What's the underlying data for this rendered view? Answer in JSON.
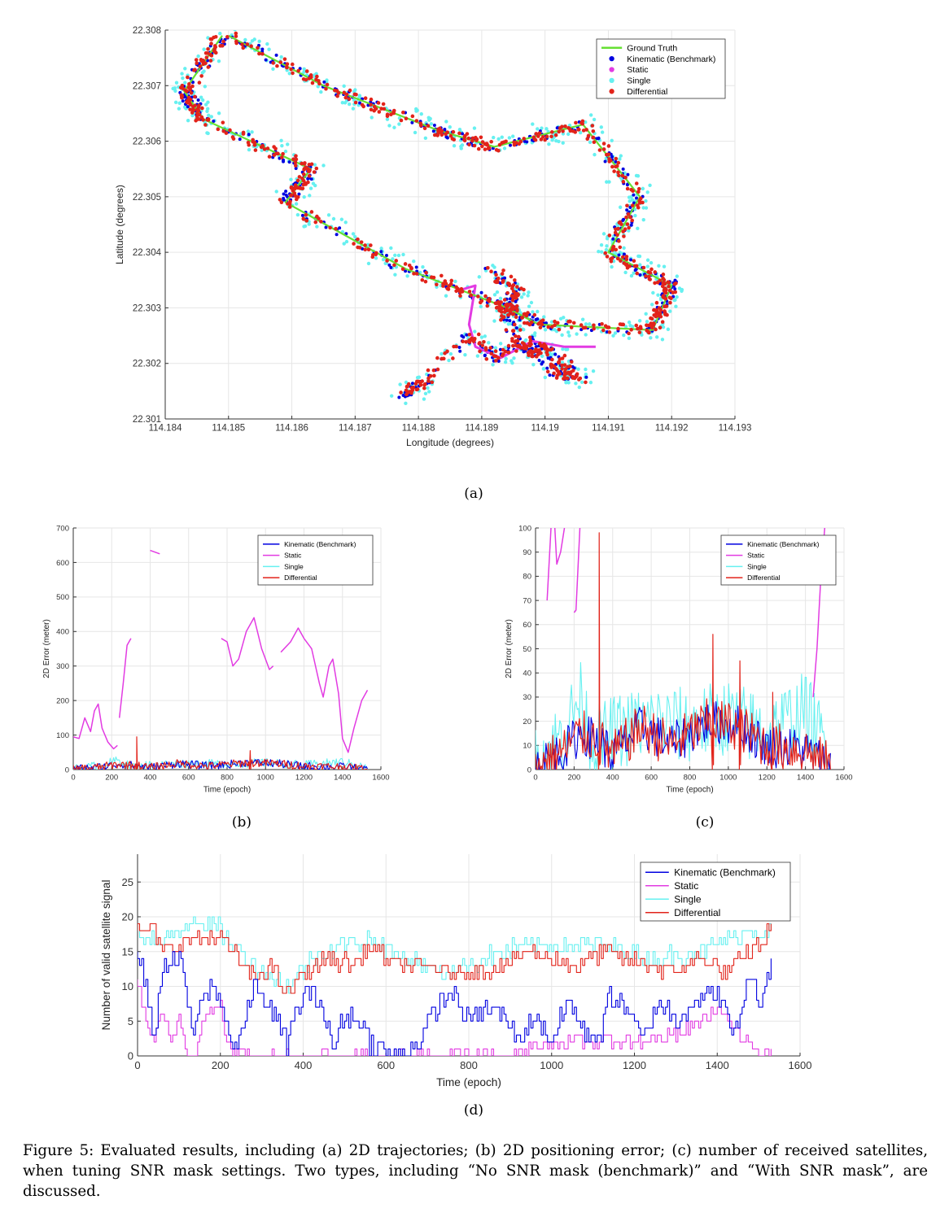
{
  "figure": {
    "caption": "Figure 5: Evaluated results, including (a) 2D trajectories; (b) 2D positioning error; (c) number of received satellites, when tuning SNR mask settings. Two types, including “No SNR mask (benchmark)” and “With SNR mask”, are discussed."
  },
  "colors": {
    "ground_truth": "#66e033",
    "kinematic": "#0000e0",
    "static": "#e23be2",
    "single": "#66f0f0",
    "differential": "#e2231a"
  },
  "chart_data": [
    {
      "id": "a",
      "label": "(a)",
      "type": "scatter",
      "xlabel": "Longitude (degrees)",
      "ylabel": "Latitude (degrees)",
      "xlim": [
        114.184,
        114.193
      ],
      "ylim": [
        22.301,
        22.308
      ],
      "xticks": [
        "114.184",
        "114.185",
        "114.186",
        "114.187",
        "114.188",
        "114.189",
        "114.19",
        "114.191",
        "114.192",
        "114.193"
      ],
      "yticks": [
        "22.301",
        "22.302",
        "22.303",
        "22.304",
        "22.305",
        "22.306",
        "22.307",
        "22.308"
      ],
      "grid": true,
      "legend_position": "top-right",
      "legend": [
        "Ground Truth",
        "Kinematic (Benchmark)",
        "Static",
        "Single",
        "Differential"
      ],
      "ground_truth": [
        [
          114.1849,
          22.3079
        ],
        [
          114.1843,
          22.3069
        ],
        [
          114.1846,
          22.3064
        ],
        [
          114.1863,
          22.3055
        ],
        [
          114.1859,
          22.3049
        ],
        [
          114.1878,
          22.3037
        ],
        [
          114.1894,
          22.303
        ],
        [
          114.1899,
          22.3027
        ],
        [
          114.1917,
          22.3026
        ],
        [
          114.192,
          22.3034
        ],
        [
          114.191,
          22.304
        ],
        [
          114.1915,
          22.305
        ],
        [
          114.1906,
          22.3063
        ],
        [
          114.1892,
          22.3059
        ],
        [
          114.1883,
          22.3062
        ],
        [
          114.1865,
          22.307
        ],
        [
          114.185,
          22.3079
        ]
      ],
      "lower_loop": [
        [
          114.1877,
          22.3014
        ],
        [
          114.1881,
          22.3017
        ],
        [
          114.1888,
          22.3025
        ],
        [
          114.1892,
          22.3021
        ],
        [
          114.1897,
          22.3024
        ],
        [
          114.1902,
          22.3018
        ],
        [
          114.1906,
          22.3017
        ],
        [
          114.19,
          22.3023
        ],
        [
          114.1897,
          22.3022
        ],
        [
          114.1893,
          22.303
        ],
        [
          114.1896,
          22.3033
        ],
        [
          114.1891,
          22.3037
        ]
      ],
      "static_path": [
        [
          114.1886,
          22.3033
        ],
        [
          114.1889,
          22.3034
        ],
        [
          114.1888,
          22.3027
        ],
        [
          114.1889,
          22.3023
        ],
        [
          114.1893,
          22.3021
        ],
        [
          114.1898,
          22.3024
        ],
        [
          114.1903,
          22.3023
        ],
        [
          114.1908,
          22.3023
        ]
      ]
    },
    {
      "id": "b",
      "label": "(b)",
      "type": "line",
      "xlabel": "Time (epoch)",
      "ylabel": "2D Error (meter)",
      "xlim": [
        0,
        1600
      ],
      "ylim": [
        0,
        700
      ],
      "xticks": [
        "0",
        "200",
        "400",
        "600",
        "800",
        "1000",
        "1200",
        "1400",
        "1600"
      ],
      "yticks": [
        "0",
        "100",
        "200",
        "300",
        "400",
        "500",
        "600",
        "700"
      ],
      "grid": true,
      "legend_position": "top-right",
      "legend": [
        "Kinematic (Benchmark)",
        "Static",
        "Single",
        "Differential"
      ],
      "static_segments": [
        [
          [
            0,
            95
          ],
          [
            30,
            90
          ],
          [
            60,
            150
          ],
          [
            90,
            110
          ],
          [
            110,
            170
          ],
          [
            130,
            190
          ],
          [
            150,
            120
          ],
          [
            180,
            80
          ],
          [
            210,
            60
          ],
          [
            230,
            70
          ]
        ],
        [
          [
            240,
            150
          ],
          [
            260,
            250
          ],
          [
            280,
            360
          ],
          [
            300,
            380
          ]
        ],
        [
          [
            400,
            635
          ],
          [
            450,
            625
          ]
        ],
        [
          [
            770,
            380
          ],
          [
            800,
            370
          ],
          [
            830,
            300
          ],
          [
            860,
            320
          ],
          [
            900,
            400
          ],
          [
            940,
            440
          ],
          [
            980,
            350
          ],
          [
            1020,
            290
          ],
          [
            1040,
            300
          ]
        ],
        [
          [
            1080,
            340
          ],
          [
            1130,
            370
          ],
          [
            1170,
            410
          ],
          [
            1200,
            380
          ],
          [
            1240,
            350
          ],
          [
            1280,
            250
          ],
          [
            1300,
            210
          ],
          [
            1330,
            300
          ],
          [
            1350,
            320
          ],
          [
            1380,
            220
          ],
          [
            1400,
            90
          ],
          [
            1430,
            50
          ],
          [
            1460,
            120
          ],
          [
            1500,
            200
          ],
          [
            1530,
            230
          ]
        ]
      ],
      "differential_approx": [
        [
          0,
          0
        ],
        [
          100,
          10
        ],
        [
          200,
          5
        ],
        [
          330,
          95
        ],
        [
          360,
          10
        ],
        [
          500,
          15
        ],
        [
          700,
          20
        ],
        [
          920,
          55
        ],
        [
          1050,
          25
        ],
        [
          1200,
          20
        ],
        [
          1400,
          10
        ],
        [
          1500,
          2
        ]
      ]
    },
    {
      "id": "c",
      "label": "(c)",
      "type": "line",
      "xlabel": "Time (epoch)",
      "ylabel": "2D Error (meter)",
      "xlim": [
        0,
        1600
      ],
      "ylim": [
        0,
        100
      ],
      "xticks": [
        "0",
        "200",
        "400",
        "600",
        "800",
        "1000",
        "1200",
        "1400",
        "1600"
      ],
      "yticks": [
        "0",
        "10",
        "20",
        "30",
        "40",
        "50",
        "60",
        "70",
        "80",
        "90",
        "100"
      ],
      "grid": true,
      "legend_position": "top-right",
      "legend": [
        "Kinematic (Benchmark)",
        "Static",
        "Single",
        "Differential"
      ],
      "static_segments": [
        [
          [
            60,
            70
          ],
          [
            80,
            100
          ]
        ],
        [
          [
            100,
            100
          ],
          [
            110,
            85
          ],
          [
            130,
            90
          ],
          [
            150,
            100
          ]
        ],
        [
          [
            200,
            65
          ],
          [
            210,
            66
          ],
          [
            230,
            100
          ]
        ],
        [
          [
            1440,
            30
          ],
          [
            1460,
            50
          ],
          [
            1480,
            80
          ],
          [
            1500,
            100
          ]
        ]
      ],
      "peaks": [
        [
          330,
          98
        ],
        [
          920,
          56
        ],
        [
          1060,
          45
        ],
        [
          1230,
          32
        ]
      ]
    },
    {
      "id": "d",
      "label": "(d)",
      "type": "line",
      "xlabel": "Time (epoch)",
      "ylabel": "Number of valid satellite signal",
      "xlim": [
        0,
        1600
      ],
      "ylim": [
        0,
        29
      ],
      "xticks": [
        "0",
        "200",
        "400",
        "600",
        "800",
        "1000",
        "1200",
        "1400",
        "1600"
      ],
      "yticks": [
        "0",
        "5",
        "10",
        "15",
        "20",
        "25"
      ],
      "grid": true,
      "legend_position": "top-right",
      "legend": [
        "Kinematic (Benchmark)",
        "Static",
        "Single",
        "Differential"
      ],
      "differential": [
        [
          0,
          18
        ],
        [
          40,
          18
        ],
        [
          60,
          15
        ],
        [
          100,
          16
        ],
        [
          140,
          17
        ],
        [
          200,
          17
        ],
        [
          240,
          14
        ],
        [
          280,
          11
        ],
        [
          320,
          13
        ],
        [
          360,
          9
        ],
        [
          400,
          12
        ],
        [
          460,
          14
        ],
        [
          520,
          13
        ],
        [
          560,
          16
        ],
        [
          620,
          13
        ],
        [
          700,
          13
        ],
        [
          740,
          12
        ],
        [
          820,
          12
        ],
        [
          880,
          13
        ],
        [
          940,
          15
        ],
        [
          1000,
          14
        ],
        [
          1060,
          13
        ],
        [
          1120,
          15
        ],
        [
          1180,
          14
        ],
        [
          1240,
          13
        ],
        [
          1300,
          12
        ],
        [
          1360,
          14
        ],
        [
          1420,
          12
        ],
        [
          1480,
          15
        ],
        [
          1530,
          18
        ]
      ],
      "single": [
        [
          0,
          18
        ],
        [
          60,
          16
        ],
        [
          100,
          18
        ],
        [
          130,
          20
        ],
        [
          200,
          18
        ],
        [
          280,
          13
        ],
        [
          360,
          10
        ],
        [
          440,
          15
        ],
        [
          560,
          17
        ],
        [
          640,
          14
        ],
        [
          740,
          12
        ],
        [
          880,
          15
        ],
        [
          1000,
          16
        ],
        [
          1120,
          16
        ],
        [
          1240,
          14
        ],
        [
          1360,
          15
        ],
        [
          1480,
          18
        ],
        [
          1530,
          18
        ]
      ],
      "kinematic": [
        [
          0,
          15
        ],
        [
          20,
          10
        ],
        [
          40,
          3
        ],
        [
          60,
          12
        ],
        [
          80,
          14
        ],
        [
          110,
          13
        ],
        [
          130,
          3
        ],
        [
          160,
          8
        ],
        [
          180,
          10
        ],
        [
          210,
          6
        ],
        [
          230,
          1
        ],
        [
          260,
          5
        ],
        [
          280,
          10
        ],
        [
          320,
          7
        ],
        [
          360,
          2
        ],
        [
          400,
          9
        ],
        [
          440,
          8
        ],
        [
          470,
          1
        ],
        [
          500,
          6
        ],
        [
          540,
          5
        ],
        [
          560,
          2
        ],
        [
          620,
          0
        ],
        [
          680,
          2
        ],
        [
          720,
          7
        ],
        [
          760,
          9
        ],
        [
          800,
          5
        ],
        [
          840,
          7
        ],
        [
          880,
          6
        ],
        [
          920,
          2
        ],
        [
          960,
          6
        ],
        [
          1000,
          2
        ],
        [
          1040,
          8
        ],
        [
          1080,
          3
        ],
        [
          1120,
          3
        ],
        [
          1140,
          9
        ],
        [
          1180,
          7
        ],
        [
          1220,
          2
        ],
        [
          1260,
          8
        ],
        [
          1300,
          5
        ],
        [
          1340,
          8
        ],
        [
          1400,
          9
        ],
        [
          1440,
          3
        ],
        [
          1480,
          12
        ],
        [
          1500,
          7
        ],
        [
          1530,
          14
        ]
      ],
      "static": [
        [
          0,
          11
        ],
        [
          20,
          5
        ],
        [
          40,
          2
        ],
        [
          60,
          6
        ],
        [
          80,
          2
        ],
        [
          100,
          6
        ],
        [
          120,
          0
        ],
        [
          140,
          0
        ],
        [
          160,
          6
        ],
        [
          200,
          7
        ],
        [
          220,
          1
        ],
        [
          260,
          0
        ],
        [
          900,
          0
        ],
        [
          940,
          1
        ],
        [
          1000,
          2
        ],
        [
          1200,
          2
        ],
        [
          1300,
          3
        ],
        [
          1360,
          5
        ],
        [
          1400,
          7
        ],
        [
          1440,
          4
        ],
        [
          1480,
          1
        ],
        [
          1530,
          1
        ]
      ]
    }
  ]
}
